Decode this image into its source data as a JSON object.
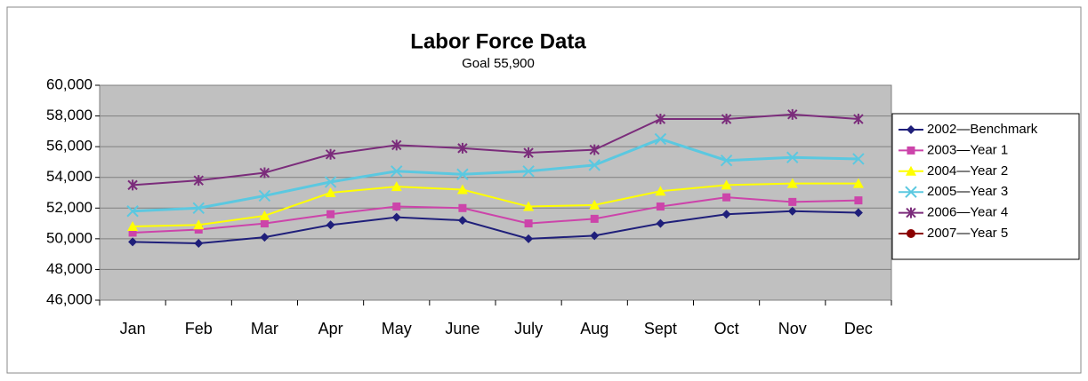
{
  "chart_data": {
    "type": "line",
    "title": "Labor Force Data",
    "subtitle": "Goal 55,900",
    "categories": [
      "Jan",
      "Feb",
      "Mar",
      "Apr",
      "May",
      "June",
      "July",
      "Aug",
      "Sept",
      "Oct",
      "Nov",
      "Dec"
    ],
    "ylim": [
      46000,
      60000
    ],
    "yticks": [
      {
        "value": 46000,
        "label": "46,000"
      },
      {
        "value": 48000,
        "label": "48,000"
      },
      {
        "value": 50000,
        "label": "50,000"
      },
      {
        "value": 52000,
        "label": "52,000"
      },
      {
        "value": 54000,
        "label": "54,000"
      },
      {
        "value": 56000,
        "label": "56,000"
      },
      {
        "value": 58000,
        "label": "58,000"
      },
      {
        "value": 60000,
        "label": "60,000"
      }
    ],
    "grid": true,
    "legend": "right",
    "series": [
      {
        "name": "2002—Benchmark",
        "color": "#1f1f7a",
        "marker": "diamond",
        "values": [
          49800,
          49700,
          50100,
          50900,
          51400,
          51200,
          50000,
          50200,
          51000,
          51600,
          51800,
          51700
        ]
      },
      {
        "name": "2003—Year 1",
        "color": "#cc44aa",
        "marker": "square",
        "values": [
          50400,
          50600,
          51000,
          51600,
          52100,
          52000,
          51000,
          51300,
          52100,
          52700,
          52400,
          52500
        ]
      },
      {
        "name": "2004—Year 2",
        "color": "#ffff00",
        "marker": "triangle",
        "values": [
          50800,
          50900,
          51500,
          53000,
          53400,
          53200,
          52100,
          52200,
          53100,
          53500,
          53600,
          53600
        ]
      },
      {
        "name": "2005—Year 3",
        "color": "#5bc8e0",
        "marker": "x",
        "values": [
          51800,
          52000,
          52800,
          53700,
          54400,
          54200,
          54400,
          54800,
          56500,
          55100,
          55300,
          55200
        ]
      },
      {
        "name": "2006—Year 4",
        "color": "#7b2c7b",
        "marker": "star",
        "values": [
          53500,
          53800,
          54300,
          55500,
          56100,
          55900,
          55600,
          55800,
          57800,
          57800,
          58100,
          57800
        ]
      },
      {
        "name": "2007—Year 5",
        "color": "#8b0000",
        "marker": "circle",
        "values": [
          null,
          null,
          null,
          null,
          null,
          null,
          null,
          null,
          null,
          null,
          null,
          null
        ]
      }
    ]
  }
}
